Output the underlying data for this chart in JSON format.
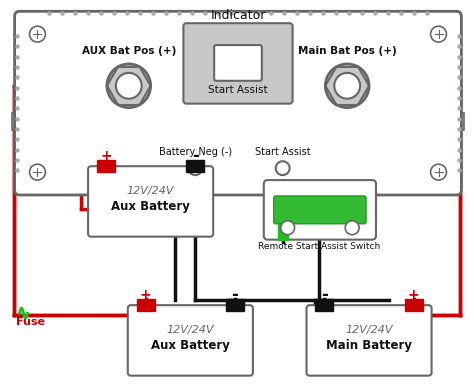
{
  "bg_color": "#ffffff",
  "title": "Indicator",
  "subtitle": "Start Assist",
  "aux_label": "AUX Bat Pos (+)",
  "main_label": "Main Bat Pos (+)",
  "bat_neg_label": "Battery Neg (-)",
  "start_assist_label": "Start Assist",
  "remote_switch_label": "Remote Start Assist Switch",
  "fuse_label": "Fuse",
  "aux_battery_label": "Aux Battery",
  "main_battery_label": "Main Battery",
  "voltage_label": "12V/24V",
  "red": "#cc0000",
  "black": "#111111",
  "green": "#22bb22",
  "lgray": "#c8c8c8",
  "dgray": "#666666",
  "white": "#ffffff",
  "lw": 2.5
}
